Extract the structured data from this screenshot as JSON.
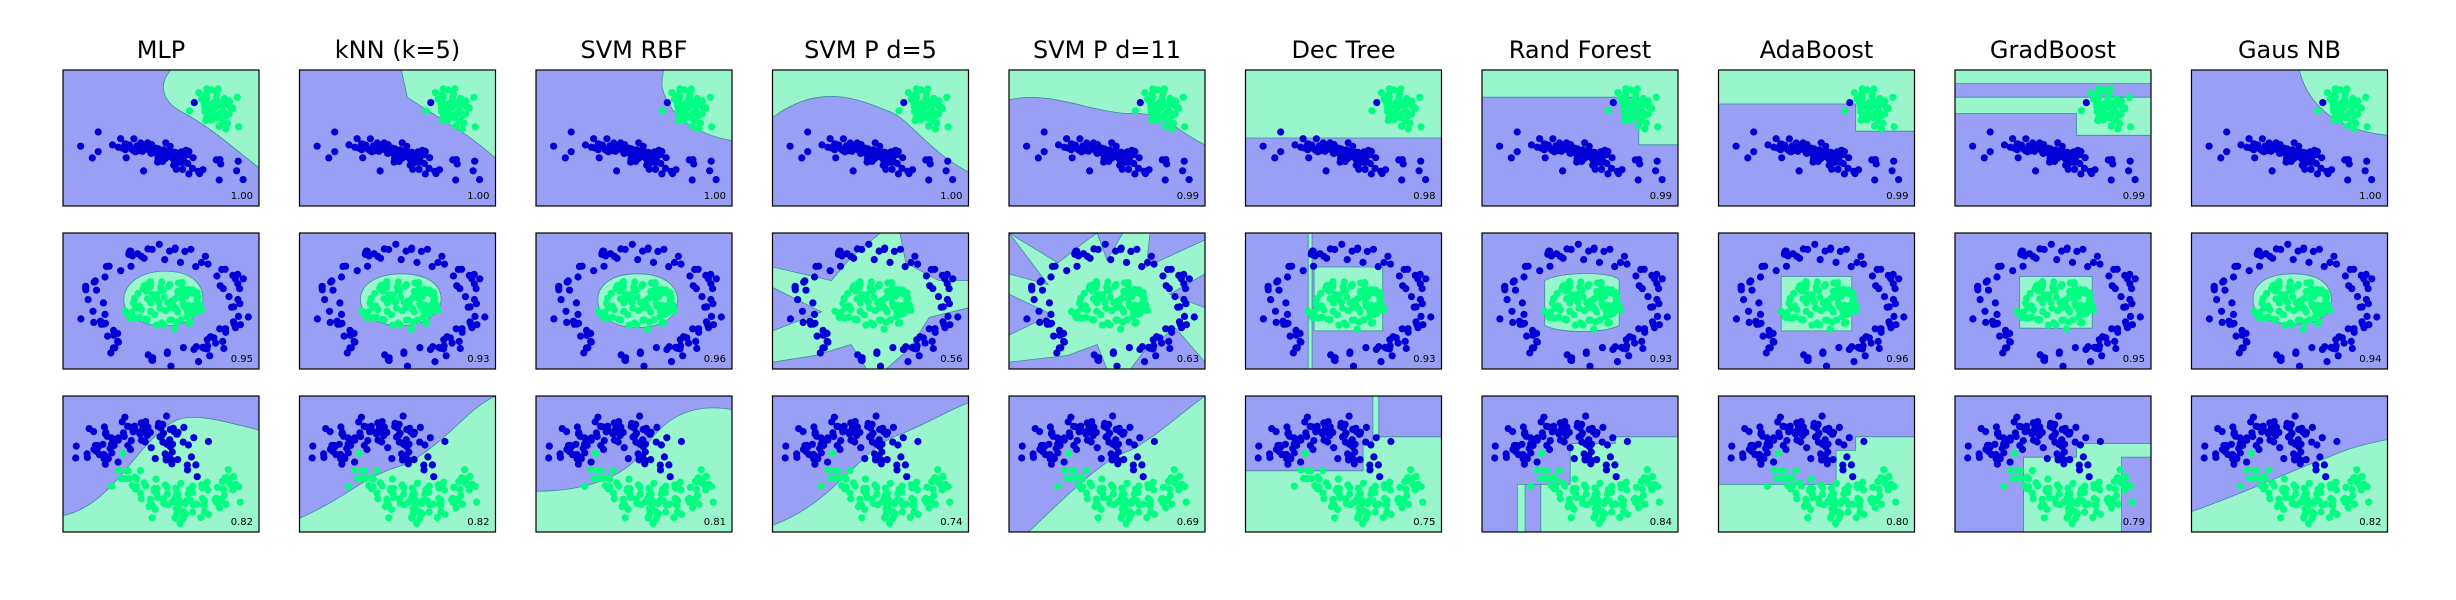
{
  "colors": {
    "class_a": "#0000d6",
    "class_b": "#00ff80",
    "region_a": "#9a9ff6",
    "region_b": "#99f5cc",
    "boundary": "#3c8c9c",
    "frame": "#000000"
  },
  "chart_data": {
    "type": "scatter",
    "classifiers": [
      "MLP",
      "kNN (k=5)",
      "SVM RBF",
      "SVM P d=5",
      "SVM P d=11",
      "Dec Tree",
      "Rand Forest",
      "AdaBoost",
      "GradBoost",
      "Gaus NB"
    ],
    "datasets": [
      "blobs",
      "circles",
      "moons"
    ],
    "scores": [
      [
        "1.00",
        "1.00",
        "1.00",
        "1.00",
        "0.99",
        "0.98",
        "0.99",
        "0.99",
        "0.99",
        "1.00"
      ],
      [
        "0.95",
        "0.93",
        "0.96",
        "0.56",
        "0.63",
        "0.93",
        "0.93",
        "0.96",
        "0.95",
        "0.94"
      ],
      [
        "0.82",
        "0.82",
        "0.81",
        "0.74",
        "0.69",
        "0.75",
        "0.84",
        "0.80",
        "0.79",
        "0.82"
      ]
    ],
    "grid": false,
    "legend": "none"
  }
}
